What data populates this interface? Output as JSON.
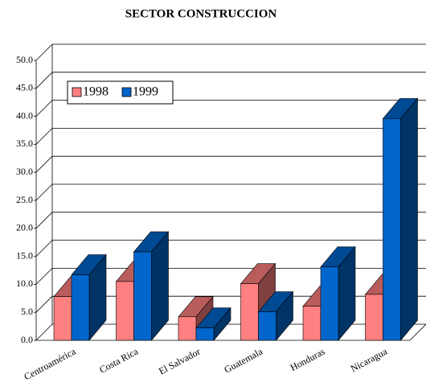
{
  "chart_data": {
    "type": "bar3d",
    "title": "SECTOR CONSTRUCCION",
    "categories": [
      "Centroamérica",
      "Costa Rica",
      "El Salvador",
      "Guatemala",
      "Honduras",
      "Nicaragua"
    ],
    "series": [
      {
        "name": "1998",
        "color": "#ff8080",
        "values": [
          7.8,
          10.5,
          4.2,
          10.1,
          6.1,
          8.2
        ]
      },
      {
        "name": "1999",
        "color": "#0066cc",
        "values": [
          11.7,
          15.8,
          2.2,
          5.1,
          13.1,
          39.6
        ]
      }
    ],
    "ylim": [
      0,
      50
    ],
    "yticks": [
      {
        "value": 0,
        "label": "0.0"
      },
      {
        "value": 5,
        "label": "5.0"
      },
      {
        "value": 10,
        "label": "10.0"
      },
      {
        "value": 15,
        "label": "15.0"
      },
      {
        "value": 20,
        "label": "20.0"
      },
      {
        "value": 25,
        "label": "25.0"
      },
      {
        "value": 30,
        "label": "30.0"
      },
      {
        "value": 35,
        "label": "35.0"
      },
      {
        "value": 40,
        "label": "40.0"
      },
      {
        "value": 45,
        "label": "45.0"
      },
      {
        "value": 50,
        "label": "50.0"
      }
    ],
    "grid": true,
    "legend": "top-left"
  }
}
